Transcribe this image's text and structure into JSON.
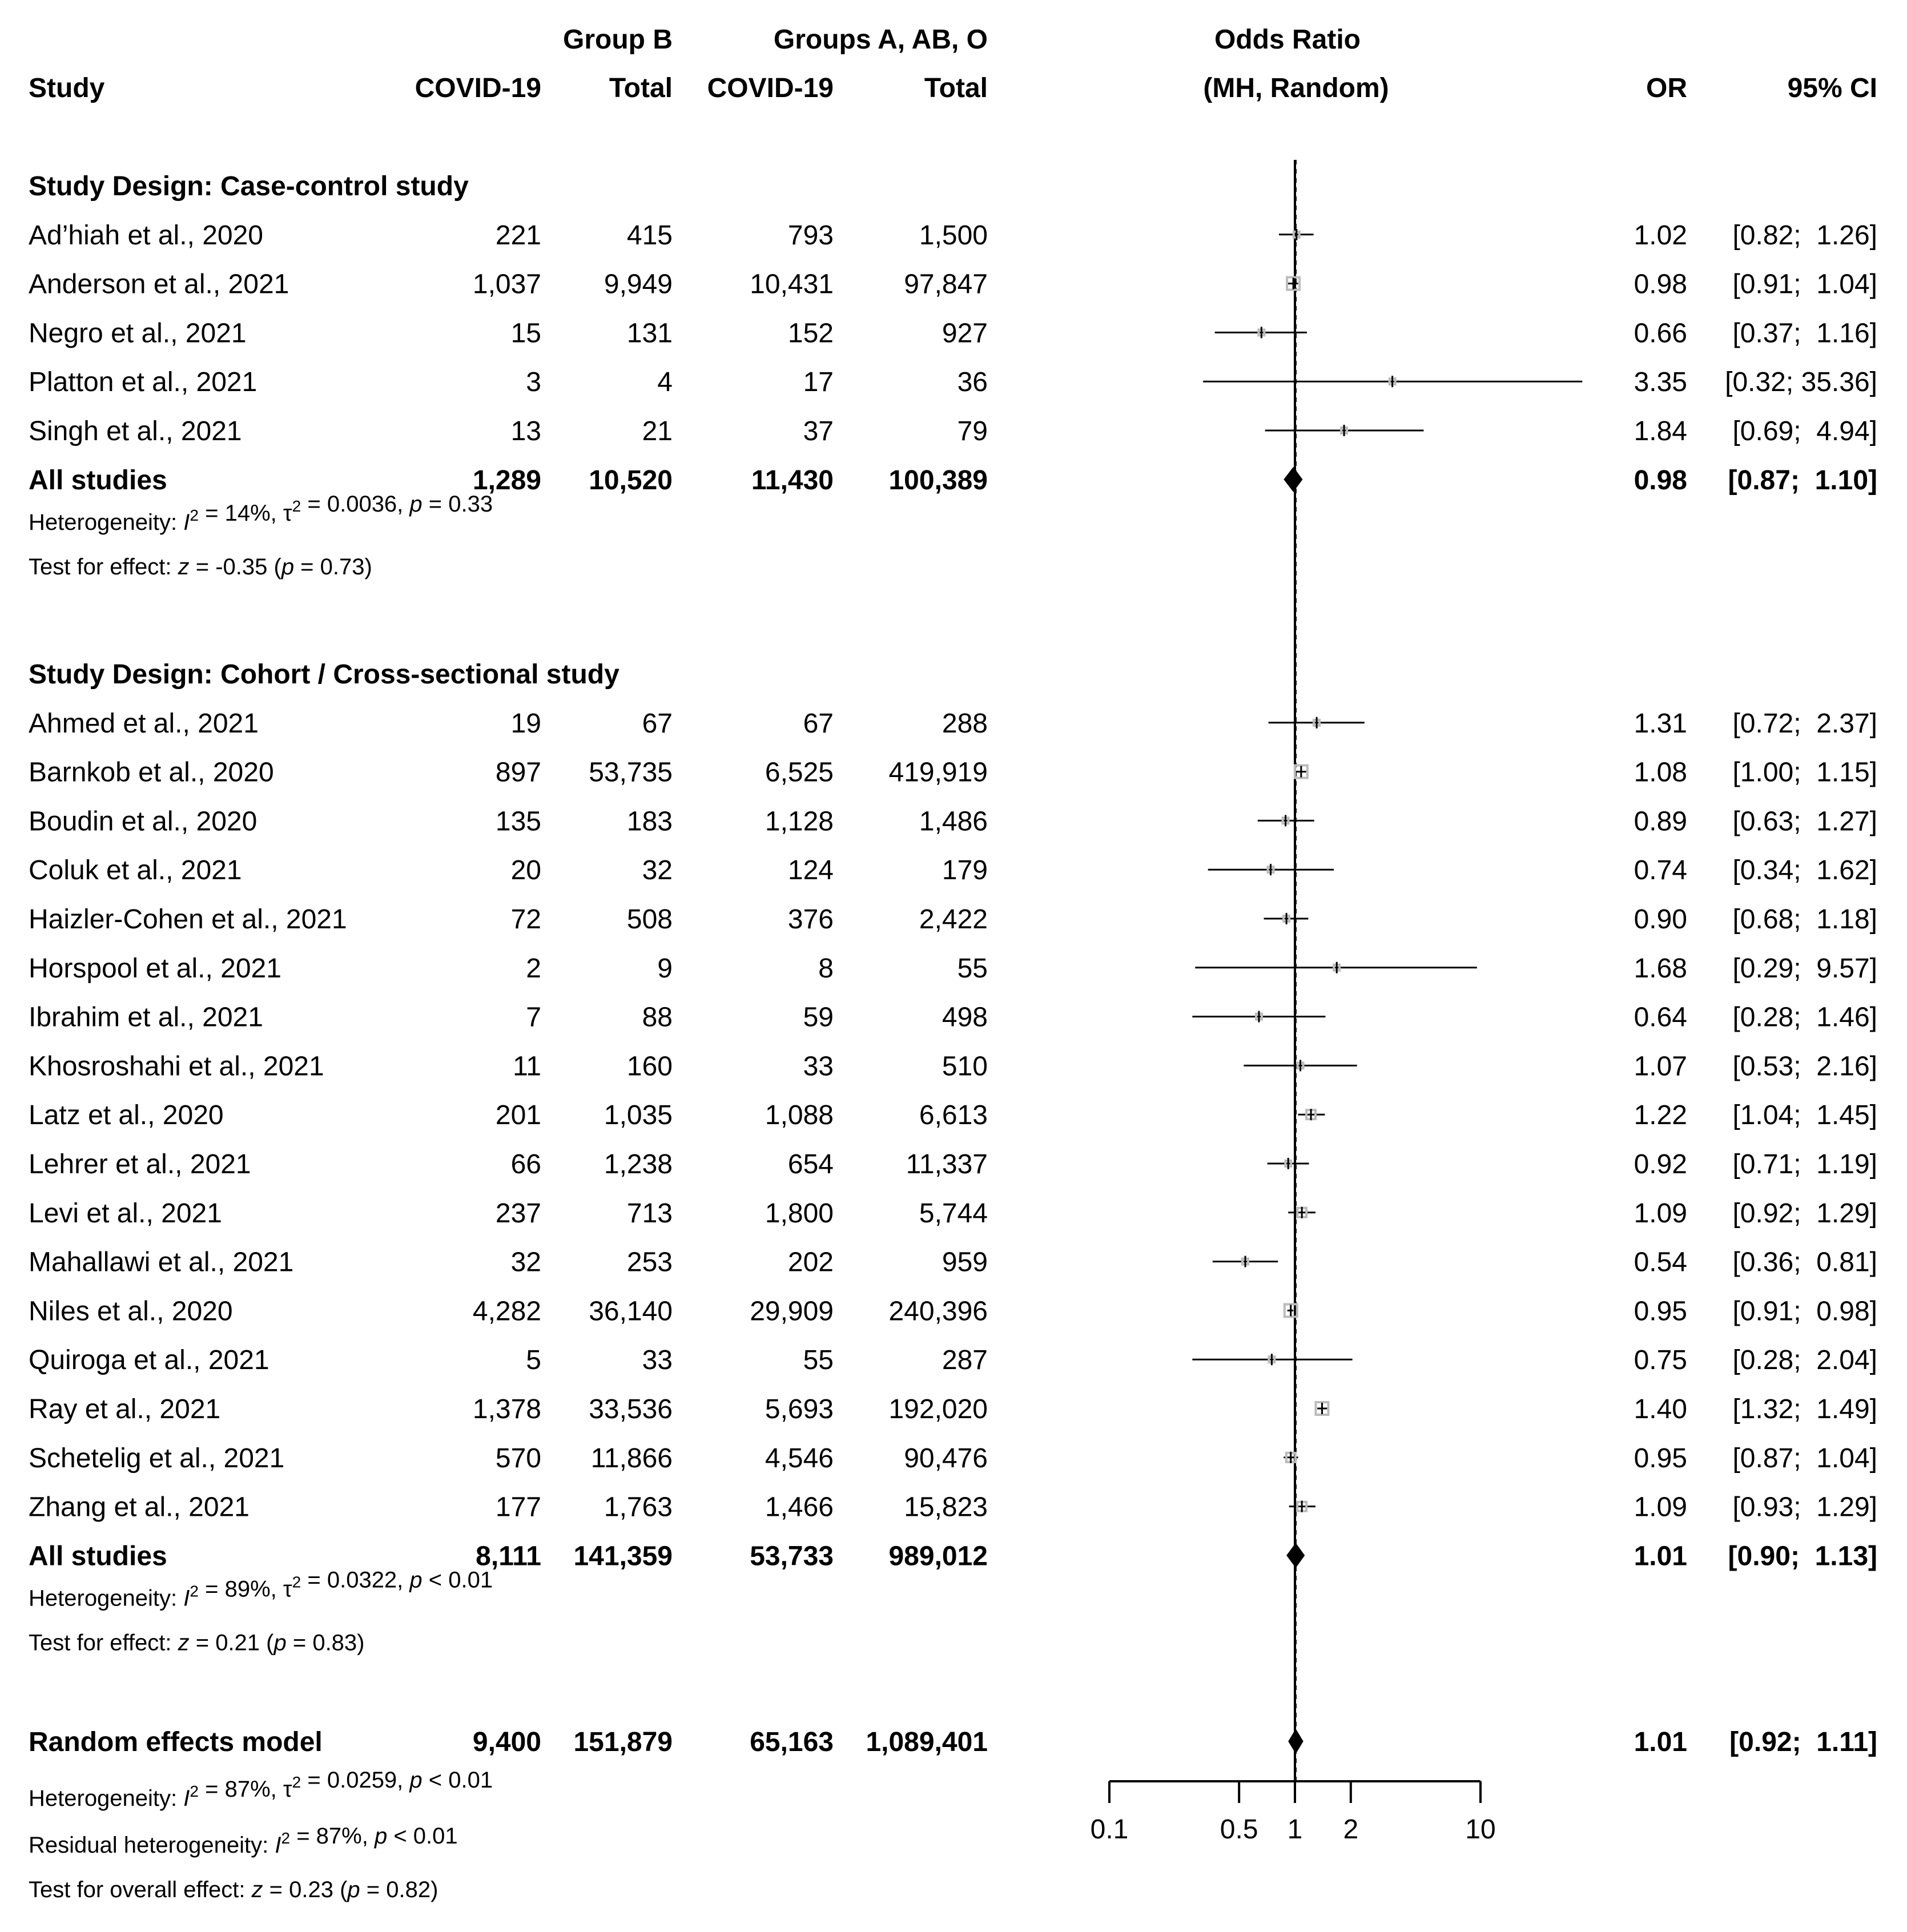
{
  "chart_data": {
    "type": "forest",
    "title": "",
    "x_axis": {
      "scale": "log",
      "label_line1": "Odds Ratio",
      "label_line2": "(MH, Random)",
      "ticks": [
        0.1,
        0.5,
        1,
        2,
        10
      ],
      "tick_labels": [
        "0.1",
        "0.5",
        "1",
        "2",
        "10"
      ],
      "range": [
        0.1,
        10
      ],
      "reference_line": 1
    },
    "headers": {
      "group_b": "Group B",
      "group_a": "Groups A, AB, O",
      "study": "Study",
      "covid_b": "COVID-19",
      "total_b": "Total",
      "covid_a": "COVID-19",
      "total_a": "Total",
      "or": "OR",
      "ci": "95% CI"
    },
    "subgroups": [
      {
        "title": "Study Design: Case-control study",
        "studies": [
          {
            "name": "Ad’hiah et al., 2020",
            "b_events": "221",
            "b_total": "415",
            "a_events": "793",
            "a_total": "1,500",
            "or": 1.02,
            "lo": 0.82,
            "hi": 1.26,
            "or_text": "1.02",
            "ci_text": "[0.82;  1.26]",
            "weight": "low"
          },
          {
            "name": "Anderson et al., 2021",
            "b_events": "1,037",
            "b_total": "9,949",
            "a_events": "10,431",
            "a_total": "97,847",
            "or": 0.98,
            "lo": 0.91,
            "hi": 1.04,
            "or_text": "0.98",
            "ci_text": "[0.91;  1.04]",
            "weight": "high"
          },
          {
            "name": "Negro et al., 2021",
            "b_events": "15",
            "b_total": "131",
            "a_events": "152",
            "a_total": "927",
            "or": 0.66,
            "lo": 0.37,
            "hi": 1.16,
            "or_text": "0.66",
            "ci_text": "[0.37;  1.16]",
            "weight": "low"
          },
          {
            "name": "Platton et al., 2021",
            "b_events": "3",
            "b_total": "4",
            "a_events": "17",
            "a_total": "36",
            "or": 3.35,
            "lo": 0.32,
            "hi": 35.36,
            "or_text": "3.35",
            "ci_text": "[0.32; 35.36]",
            "weight": "low"
          },
          {
            "name": "Singh et al., 2021",
            "b_events": "13",
            "b_total": "21",
            "a_events": "37",
            "a_total": "79",
            "or": 1.84,
            "lo": 0.69,
            "hi": 4.94,
            "or_text": "1.84",
            "ci_text": "[0.69;  4.94]",
            "weight": "low"
          }
        ],
        "pooled": {
          "label": "All studies",
          "b_events": "1,289",
          "b_total": "10,520",
          "a_events": "11,430",
          "a_total": "100,389",
          "or": 0.98,
          "lo": 0.87,
          "hi": 1.1,
          "or_text": "0.98",
          "ci_text": "[0.87;  1.10]"
        },
        "heterogeneity": "Heterogeneity: I² = 14%, τ² = 0.0036, p = 0.33",
        "effect_test": "Test for effect: z = -0.35 (p = 0.73)"
      },
      {
        "title": "Study Design: Cohort / Cross-sectional study",
        "studies": [
          {
            "name": "Ahmed et al., 2021",
            "b_events": "19",
            "b_total": "67",
            "a_events": "67",
            "a_total": "288",
            "or": 1.31,
            "lo": 0.72,
            "hi": 2.37,
            "or_text": "1.31",
            "ci_text": "[0.72;  2.37]",
            "weight": "low"
          },
          {
            "name": "Barnkob et al., 2020",
            "b_events": "897",
            "b_total": "53,735",
            "a_events": "6,525",
            "a_total": "419,919",
            "or": 1.08,
            "lo": 1.0,
            "hi": 1.15,
            "or_text": "1.08",
            "ci_text": "[1.00;  1.15]",
            "weight": "high"
          },
          {
            "name": "Boudin et al., 2020",
            "b_events": "135",
            "b_total": "183",
            "a_events": "1,128",
            "a_total": "1,486",
            "or": 0.89,
            "lo": 0.63,
            "hi": 1.27,
            "or_text": "0.89",
            "ci_text": "[0.63;  1.27]",
            "weight": "low"
          },
          {
            "name": "Coluk et al., 2021",
            "b_events": "20",
            "b_total": "32",
            "a_events": "124",
            "a_total": "179",
            "or": 0.74,
            "lo": 0.34,
            "hi": 1.62,
            "or_text": "0.74",
            "ci_text": "[0.34;  1.62]",
            "weight": "low"
          },
          {
            "name": "Haizler-Cohen et al., 2021",
            "b_events": "72",
            "b_total": "508",
            "a_events": "376",
            "a_total": "2,422",
            "or": 0.9,
            "lo": 0.68,
            "hi": 1.18,
            "or_text": "0.90",
            "ci_text": "[0.68;  1.18]",
            "weight": "low"
          },
          {
            "name": "Horspool et al., 2021",
            "b_events": "2",
            "b_total": "9",
            "a_events": "8",
            "a_total": "55",
            "or": 1.68,
            "lo": 0.29,
            "hi": 9.57,
            "or_text": "1.68",
            "ci_text": "[0.29;  9.57]",
            "weight": "low"
          },
          {
            "name": "Ibrahim et al., 2021",
            "b_events": "7",
            "b_total": "88",
            "a_events": "59",
            "a_total": "498",
            "or": 0.64,
            "lo": 0.28,
            "hi": 1.46,
            "or_text": "0.64",
            "ci_text": "[0.28;  1.46]",
            "weight": "low"
          },
          {
            "name": "Khosroshahi et al., 2021",
            "b_events": "11",
            "b_total": "160",
            "a_events": "33",
            "a_total": "510",
            "or": 1.07,
            "lo": 0.53,
            "hi": 2.16,
            "or_text": "1.07",
            "ci_text": "[0.53;  2.16]",
            "weight": "low"
          },
          {
            "name": "Latz et al., 2020",
            "b_events": "201",
            "b_total": "1,035",
            "a_events": "1,088",
            "a_total": "6,613",
            "or": 1.22,
            "lo": 1.04,
            "hi": 1.45,
            "or_text": "1.22",
            "ci_text": "[1.04;  1.45]",
            "weight": "medium"
          },
          {
            "name": "Lehrer et al., 2021",
            "b_events": "66",
            "b_total": "1,238",
            "a_events": "654",
            "a_total": "11,337",
            "or": 0.92,
            "lo": 0.71,
            "hi": 1.19,
            "or_text": "0.92",
            "ci_text": "[0.71;  1.19]",
            "weight": "low"
          },
          {
            "name": "Levi et al., 2021",
            "b_events": "237",
            "b_total": "713",
            "a_events": "1,800",
            "a_total": "5,744",
            "or": 1.09,
            "lo": 0.92,
            "hi": 1.29,
            "or_text": "1.09",
            "ci_text": "[0.92;  1.29]",
            "weight": "medium"
          },
          {
            "name": "Mahallawi et al., 2021",
            "b_events": "32",
            "b_total": "253",
            "a_events": "202",
            "a_total": "959",
            "or": 0.54,
            "lo": 0.36,
            "hi": 0.81,
            "or_text": "0.54",
            "ci_text": "[0.36;  0.81]",
            "weight": "low"
          },
          {
            "name": "Niles et al., 2020",
            "b_events": "4,282",
            "b_total": "36,140",
            "a_events": "29,909",
            "a_total": "240,396",
            "or": 0.95,
            "lo": 0.91,
            "hi": 0.98,
            "or_text": "0.95",
            "ci_text": "[0.91;  0.98]",
            "weight": "high"
          },
          {
            "name": "Quiroga et al., 2021",
            "b_events": "5",
            "b_total": "33",
            "a_events": "55",
            "a_total": "287",
            "or": 0.75,
            "lo": 0.28,
            "hi": 2.04,
            "or_text": "0.75",
            "ci_text": "[0.28;  2.04]",
            "weight": "low"
          },
          {
            "name": "Ray et al., 2021",
            "b_events": "1,378",
            "b_total": "33,536",
            "a_events": "5,693",
            "a_total": "192,020",
            "or": 1.4,
            "lo": 1.32,
            "hi": 1.49,
            "or_text": "1.40",
            "ci_text": "[1.32;  1.49]",
            "weight": "high"
          },
          {
            "name": "Schetelig et al., 2021",
            "b_events": "570",
            "b_total": "11,866",
            "a_events": "4,546",
            "a_total": "90,476",
            "or": 0.95,
            "lo": 0.87,
            "hi": 1.04,
            "or_text": "0.95",
            "ci_text": "[0.87;  1.04]",
            "weight": "medium"
          },
          {
            "name": "Zhang et al., 2021",
            "b_events": "177",
            "b_total": "1,763",
            "a_events": "1,466",
            "a_total": "15,823",
            "or": 1.09,
            "lo": 0.93,
            "hi": 1.29,
            "or_text": "1.09",
            "ci_text": "[0.93;  1.29]",
            "weight": "medium"
          }
        ],
        "pooled": {
          "label": "All studies",
          "b_events": "8,111",
          "b_total": "141,359",
          "a_events": "53,733",
          "a_total": "989,012",
          "or": 1.01,
          "lo": 0.9,
          "hi": 1.13,
          "or_text": "1.01",
          "ci_text": "[0.90;  1.13]"
        },
        "heterogeneity": "Heterogeneity: I² = 89%, τ² = 0.0322, p < 0.01",
        "effect_test": "Test for effect: z = 0.21 (p = 0.83)"
      }
    ],
    "overall": {
      "label": "Random effects model",
      "b_events": "9,400",
      "b_total": "151,879",
      "a_events": "65,163",
      "a_total": "1,089,401",
      "or": 1.01,
      "lo": 0.92,
      "hi": 1.11,
      "or_text": "1.01",
      "ci_text": "[0.92;  1.11]",
      "heterogeneity": "Heterogeneity: I² = 87%, τ² = 0.0259, p < 0.01",
      "residual": "Residual heterogeneity: I² = 87%, p < 0.01",
      "overall_test": "Test for overall effect: z = 0.23 (p = 0.82)"
    }
  }
}
